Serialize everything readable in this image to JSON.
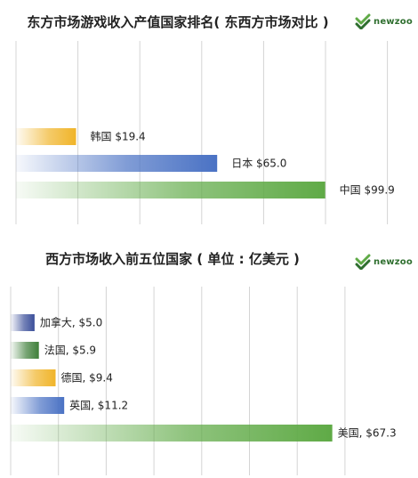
{
  "chart_data": [
    {
      "type": "bar",
      "orientation": "horizontal",
      "title": "东方市场游戏收入产值国家排名( 东西方市场对比 )",
      "logo": "newzoo",
      "categories": [
        "韩国",
        "日本",
        "中国"
      ],
      "values": [
        19.4,
        65.0,
        99.9
      ],
      "labels": [
        "韩国 $19.4",
        "日本 $65.0",
        "中国 $99.9"
      ],
      "colors": [
        "#f0b429",
        "#4a72c4",
        "#5faa46"
      ],
      "xlim": [
        0,
        100
      ],
      "grid": true
    },
    {
      "type": "bar",
      "orientation": "horizontal",
      "title": "西方市场收入前五位国家 ( 单位 : 亿美元 )",
      "logo": "newzoo",
      "categories": [
        "加拿大",
        "法国",
        "德国",
        "英国",
        "美国"
      ],
      "values": [
        5.0,
        5.9,
        9.4,
        11.2,
        67.3
      ],
      "labels": [
        "加拿大, $5.0",
        "法国, $5.9",
        "德国, $9.4",
        "英国, $11.2",
        "美国, $67.3"
      ],
      "colors": [
        "#3b4f9a",
        "#3f7f3a",
        "#f0b429",
        "#4a72c4",
        "#5faa46"
      ],
      "xlim": [
        0,
        75
      ],
      "grid": true
    }
  ]
}
